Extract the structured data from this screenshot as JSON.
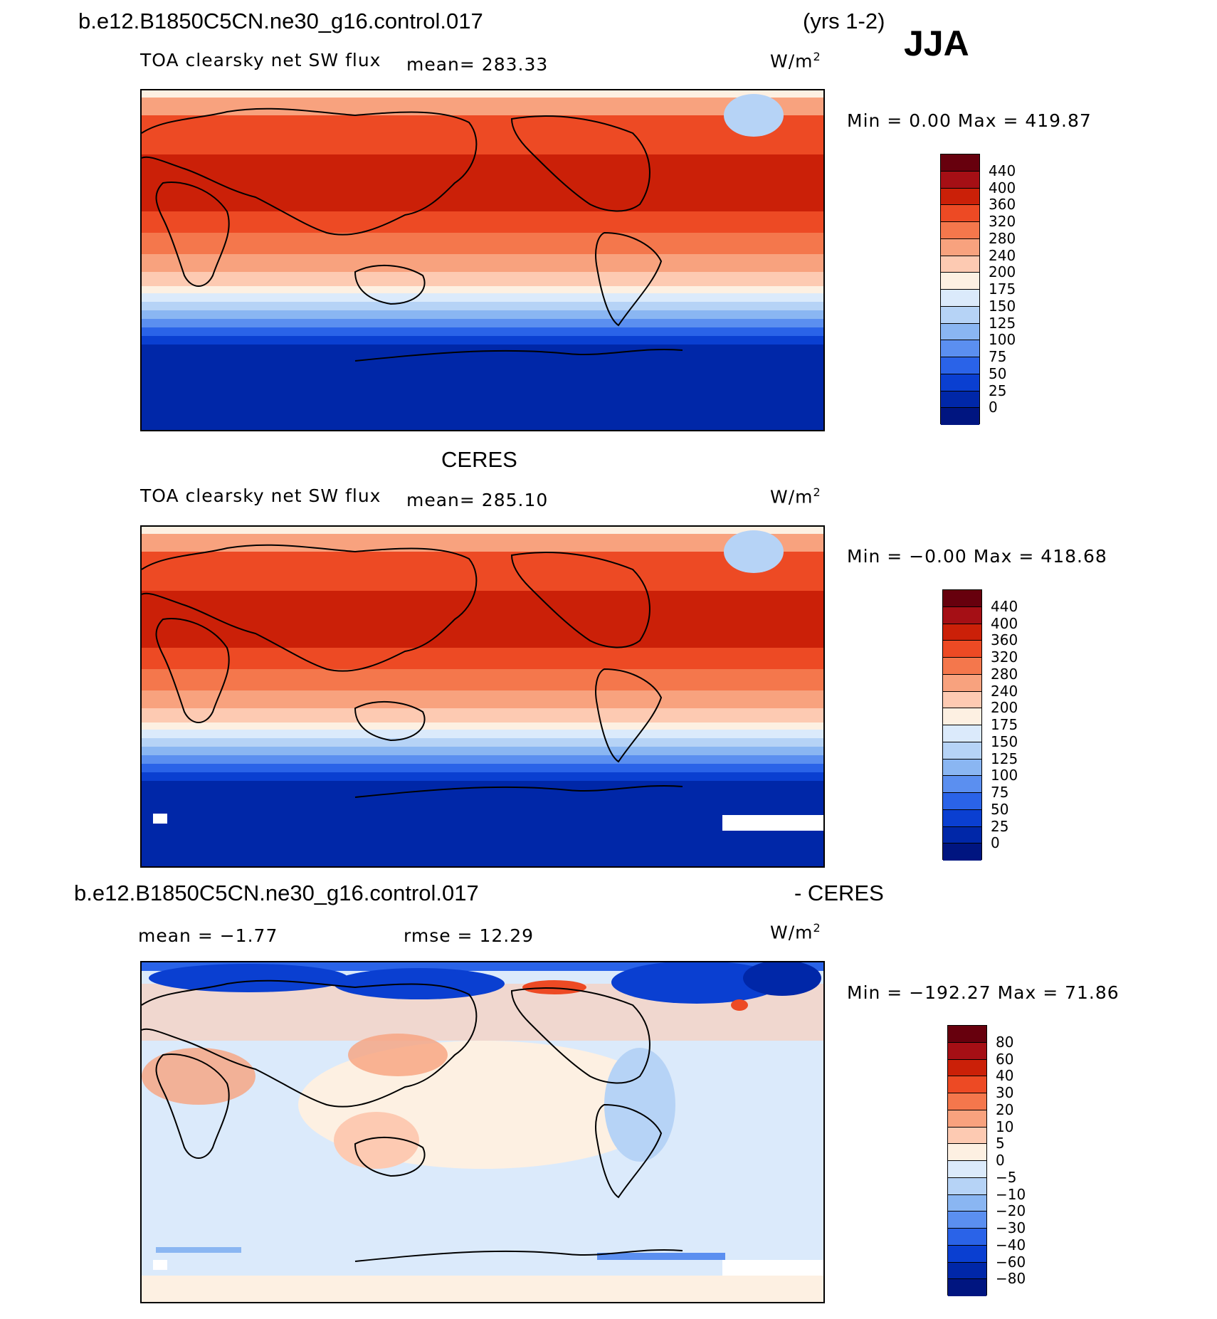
{
  "header": {
    "case_name": "b.e12.B1850C5CN.ne30_g16.control.017",
    "years": "(yrs 1-2)",
    "season": "JJA"
  },
  "panels": [
    {
      "id": "model",
      "variable": "TOA clearsky net SW flux",
      "mean_text": "mean= 283.33",
      "unit_base": "W/m",
      "unit_exp": "2",
      "stats_text": "Min =    0.00 Max = 419.87",
      "colorbar": {
        "colors": [
          "#67000d",
          "#a50f15",
          "#cb2008",
          "#ed4a24",
          "#f4774c",
          "#f8a27e",
          "#fdcab2",
          "#fdf0e2",
          "#dbeafb",
          "#b6d3f6",
          "#8ab6f2",
          "#5b8ff0",
          "#2a63e8",
          "#0a3fd1",
          "#0027a8",
          "#001580"
        ],
        "labels": [
          "440",
          "400",
          "360",
          "320",
          "280",
          "240",
          "200",
          "175",
          "150",
          "125",
          "100",
          "75",
          "50",
          "25",
          "0"
        ]
      }
    },
    {
      "id": "obs",
      "title": "CERES",
      "variable": "TOA clearsky net SW flux",
      "mean_text": "mean= 285.10",
      "unit_base": "W/m",
      "unit_exp": "2",
      "stats_text": "Min =  −0.00 Max = 418.68",
      "colorbar": {
        "colors": [
          "#67000d",
          "#a50f15",
          "#cb2008",
          "#ed4a24",
          "#f4774c",
          "#f8a27e",
          "#fdcab2",
          "#fdf0e2",
          "#dbeafb",
          "#b6d3f6",
          "#8ab6f2",
          "#5b8ff0",
          "#2a63e8",
          "#0a3fd1",
          "#0027a8",
          "#001580"
        ],
        "labels": [
          "440",
          "400",
          "360",
          "320",
          "280",
          "240",
          "200",
          "175",
          "150",
          "125",
          "100",
          "75",
          "50",
          "25",
          "0"
        ]
      }
    },
    {
      "id": "diff",
      "title_left": "b.e12.B1850C5CN.ne30_g16.control.017",
      "title_right": "- CERES",
      "mean_text": "mean =   −1.77",
      "rmse_text": "rmse =   12.29",
      "unit_base": "W/m",
      "unit_exp": "2",
      "stats_text": "Min = −192.27 Max =  71.86",
      "colorbar": {
        "colors": [
          "#67000d",
          "#a50f15",
          "#cb2008",
          "#ed4a24",
          "#f4774c",
          "#f8a27e",
          "#fdcab2",
          "#fdf0e2",
          "#dbeafb",
          "#b6d3f6",
          "#8ab6f2",
          "#5b8ff0",
          "#2a63e8",
          "#0a3fd1",
          "#0027a8",
          "#001580"
        ],
        "labels": [
          "80",
          "60",
          "40",
          "30",
          "20",
          "10",
          "5",
          "0",
          "−5",
          "−10",
          "−20",
          "−30",
          "−40",
          "−60",
          "−80"
        ]
      }
    }
  ]
}
